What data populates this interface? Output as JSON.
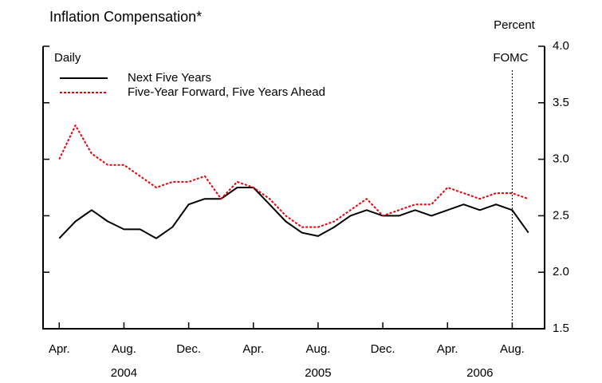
{
  "chart_data": {
    "type": "line",
    "title": "Inflation Compensation*",
    "y_unit_label": "Percent",
    "frequency_label": "Daily",
    "x": [
      "2004-04",
      "2004-05",
      "2004-06",
      "2004-07",
      "2004-08",
      "2004-09",
      "2004-10",
      "2004-11",
      "2004-12",
      "2005-01",
      "2005-02",
      "2005-03",
      "2005-04",
      "2005-05",
      "2005-06",
      "2005-07",
      "2005-08",
      "2005-09",
      "2005-10",
      "2005-11",
      "2005-12",
      "2006-01",
      "2006-02",
      "2006-03",
      "2006-04",
      "2006-05",
      "2006-06",
      "2006-07",
      "2006-08",
      "2006-09"
    ],
    "series": [
      {
        "name": "Next Five Years",
        "color": "#000000",
        "dash": false,
        "values": [
          2.3,
          2.45,
          2.55,
          2.45,
          2.38,
          2.38,
          2.3,
          2.4,
          2.6,
          2.65,
          2.65,
          2.75,
          2.75,
          2.6,
          2.45,
          2.35,
          2.32,
          2.4,
          2.5,
          2.55,
          2.5,
          2.5,
          2.55,
          2.5,
          2.55,
          2.6,
          2.55,
          2.6,
          2.55,
          2.35
        ]
      },
      {
        "name": "Five-Year Forward, Five Years Ahead",
        "color": "#e8000b",
        "dash": true,
        "values": [
          3.0,
          3.3,
          3.05,
          2.95,
          2.95,
          2.85,
          2.75,
          2.8,
          2.8,
          2.85,
          2.65,
          2.8,
          2.75,
          2.65,
          2.5,
          2.4,
          2.4,
          2.45,
          2.55,
          2.65,
          2.5,
          2.55,
          2.6,
          2.6,
          2.75,
          2.7,
          2.65,
          2.7,
          2.7,
          2.65
        ]
      }
    ],
    "xlim": [
      "2004-03",
      "2006-10"
    ],
    "xticks": [
      {
        "value": "2004-04",
        "label": "Apr."
      },
      {
        "value": "2004-08",
        "label": "Aug."
      },
      {
        "value": "2004-12",
        "label": "Dec."
      },
      {
        "value": "2005-04",
        "label": "Apr."
      },
      {
        "value": "2005-08",
        "label": "Aug."
      },
      {
        "value": "2005-12",
        "label": "Dec."
      },
      {
        "value": "2006-04",
        "label": "Apr."
      },
      {
        "value": "2006-08",
        "label": "Aug."
      }
    ],
    "year_labels": [
      "2004",
      "2005",
      "2006"
    ],
    "ylim": [
      1.5,
      4.0
    ],
    "yticks": [
      1.5,
      {
        "value": 2,
        "label": "2.0"
      },
      2.5,
      {
        "value": 3,
        "label": "3.0"
      },
      3.5,
      {
        "value": 4,
        "label": "4.0"
      }
    ],
    "annotations": [
      {
        "label": "FOMC",
        "x": "2006-08"
      }
    ]
  }
}
